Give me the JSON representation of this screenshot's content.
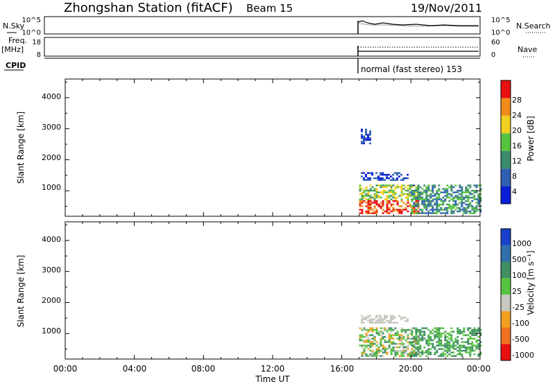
{
  "header": {
    "station": "Zhongshan Station (fitACF)",
    "beam": "Beam 15",
    "date": "19/Nov/2011"
  },
  "strip_labels": {
    "nsky": "N.Sky",
    "nsearch": "N.Search",
    "freq_top": "Freq.",
    "freq_unit": "[MHz]",
    "nave": "Nave",
    "cpid": "CPID",
    "mode": "normal (fast stereo) 153"
  },
  "chart_data": [
    {
      "type": "line",
      "panel": "noise",
      "yticks_left": [
        "10^5",
        "10^0"
      ],
      "yticks_right": [
        "10^5",
        "10^0"
      ],
      "series": [
        {
          "name": "N.Sky",
          "style": "solid"
        },
        {
          "name": "N.Search",
          "style": "dotted"
        }
      ],
      "data_start_ut": 17.0,
      "data_end_ut": 24.0
    },
    {
      "type": "line",
      "panel": "frequency",
      "yticks_left": [
        "18",
        "8"
      ],
      "yticks_right": [
        "60",
        "0"
      ],
      "series": [
        {
          "name": "Freq.",
          "style": "solid",
          "units": "MHz",
          "value_approx": 10
        },
        {
          "name": "Nave",
          "style": "dotted",
          "value_approx": 33
        }
      ]
    },
    {
      "type": "heatmap",
      "panel": "power",
      "xlabel": "",
      "ylabel": "Slant Range [km]",
      "x_ticks": [
        "00:00",
        "04:00",
        "08:00",
        "12:00",
        "16:00",
        "20:00",
        "00:00"
      ],
      "x_range_ut": [
        0,
        24
      ],
      "y_ticks": [
        "1000",
        "2000",
        "3000",
        "4000"
      ],
      "y_range_km": [
        180,
        4600
      ],
      "colorbar": {
        "label": "Power [dB]",
        "tick_labels": [
          "4",
          "8",
          "12",
          "16",
          "20",
          "24",
          "28"
        ],
        "colors": [
          "#0a1ed8",
          "#2f5fb2",
          "#3b8c6b",
          "#56c440",
          "#f0d020",
          "#f08c1a",
          "#e81010"
        ]
      },
      "echo_regions": [
        {
          "ut": [
            17.0,
            20.4
          ],
          "km": [
            300,
            1200
          ],
          "band_db": 28
        },
        {
          "ut": [
            17.1,
            19.8
          ],
          "km": [
            1350,
            1600
          ],
          "band_db": 8
        },
        {
          "ut": [
            17.1,
            17.6
          ],
          "km": [
            2500,
            3000
          ],
          "band_db": 6
        },
        {
          "ut": [
            20.0,
            24.0
          ],
          "km": [
            300,
            1200
          ],
          "band_db": 12
        }
      ]
    },
    {
      "type": "heatmap",
      "panel": "velocity",
      "xlabel": "Time UT",
      "ylabel": "Slant Range [km]",
      "x_ticks": [
        "00:00",
        "04:00",
        "08:00",
        "12:00",
        "16:00",
        "20:00",
        "00:00"
      ],
      "x_range_ut": [
        0,
        24
      ],
      "y_ticks": [
        "1000",
        "2000",
        "3000",
        "4000"
      ],
      "y_range_km": [
        180,
        4600
      ],
      "colorbar": {
        "label": "Velocity [m s⁻¹]",
        "tick_labels": [
          "1000",
          "500",
          "100",
          "25",
          "-25",
          "-100",
          "-500",
          "-1000"
        ],
        "colors": [
          "#1a3fc8",
          "#2f6faa",
          "#3f8f63",
          "#56c440",
          "#c8c8c0",
          "#f0a020",
          "#f07020",
          "#e81010"
        ]
      },
      "echo_regions": [
        {
          "ut": [
            17.0,
            20.4
          ],
          "km": [
            300,
            1200
          ],
          "vel_ms": -25
        },
        {
          "ut": [
            20.0,
            24.0
          ],
          "km": [
            300,
            1200
          ],
          "vel_ms": 100
        },
        {
          "ut": [
            17.1,
            19.8
          ],
          "km": [
            1350,
            1600
          ],
          "vel_ms": 25
        }
      ]
    }
  ]
}
